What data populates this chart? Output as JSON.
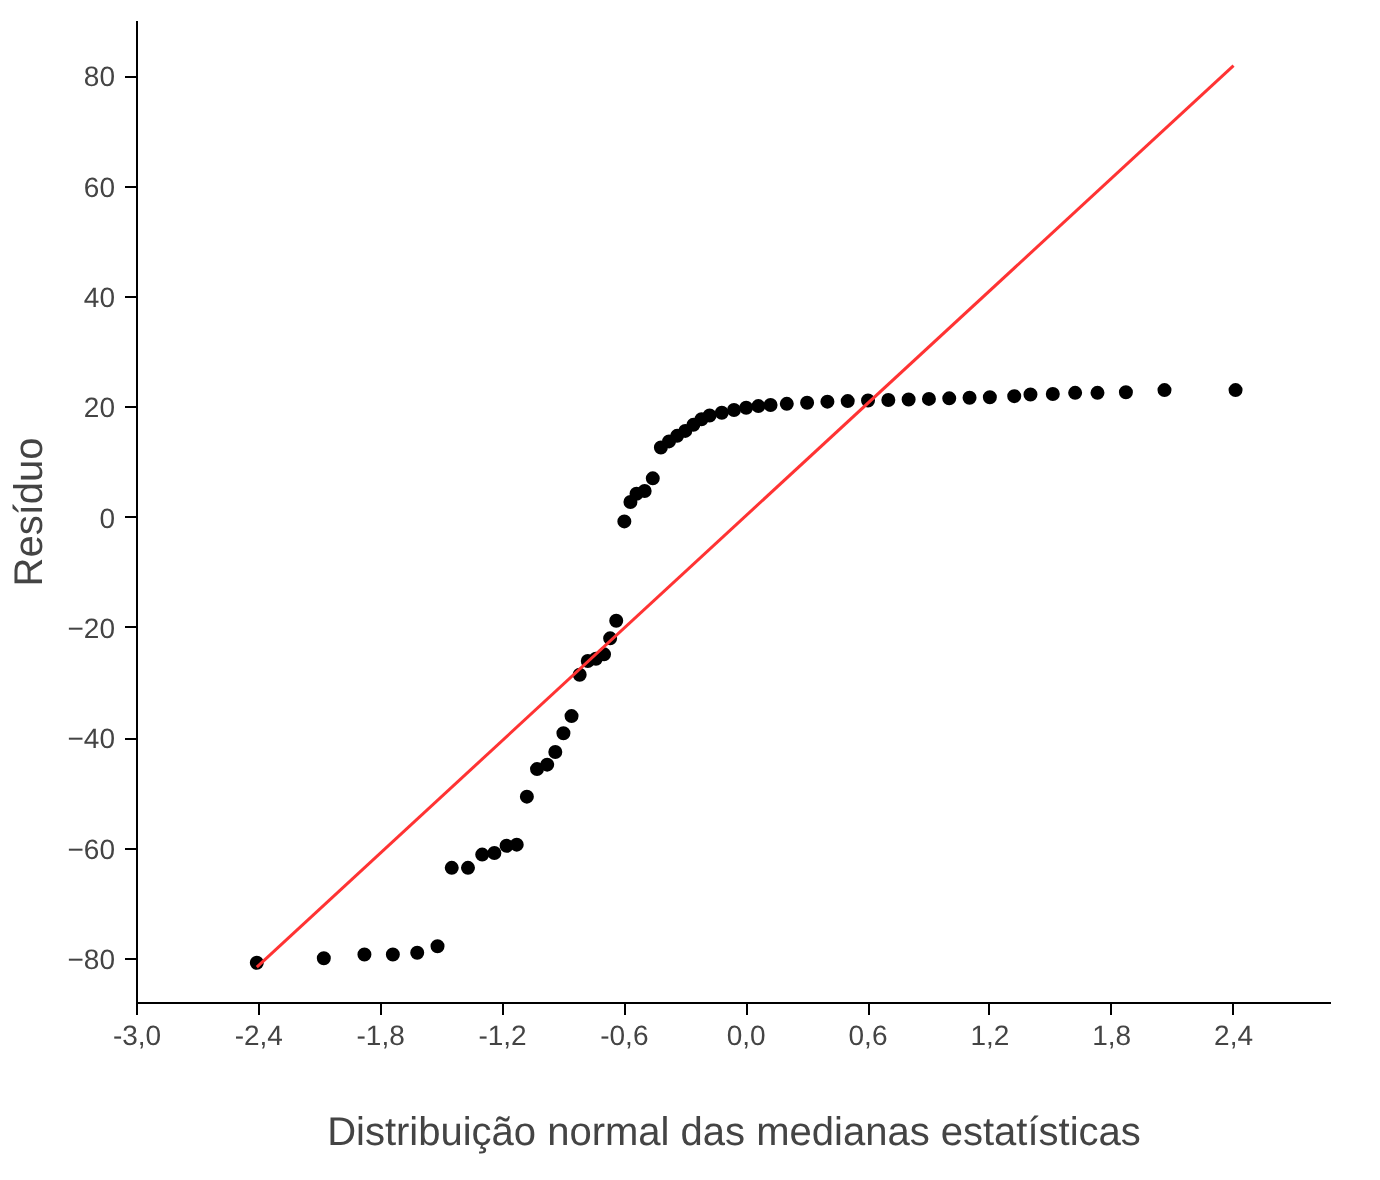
{
  "chart_data": {
    "type": "scatter",
    "xlabel": "Distribuição normal das medianas estatísticas",
    "ylabel": "Resíduo",
    "xlim": [
      -3.0,
      2.88
    ],
    "ylim": [
      -88,
      90
    ],
    "xticks": [
      {
        "value": -3.0,
        "label": "-3,0"
      },
      {
        "value": -2.4,
        "label": "-2,4"
      },
      {
        "value": -1.8,
        "label": "-1,8"
      },
      {
        "value": -1.2,
        "label": "-1,2"
      },
      {
        "value": -0.6,
        "label": "-0,6"
      },
      {
        "value": 0.0,
        "label": "0,0"
      },
      {
        "value": 0.6,
        "label": "0,6"
      },
      {
        "value": 1.2,
        "label": "1,2"
      },
      {
        "value": 1.8,
        "label": "1,8"
      },
      {
        "value": 2.4,
        "label": "2,4"
      }
    ],
    "yticks": [
      -80,
      -60,
      -40,
      -20,
      0,
      20,
      40,
      60,
      80
    ],
    "grid": false,
    "series": [
      {
        "color": "#000000",
        "marker": "circle",
        "x": [
          -2.41,
          -2.08,
          -1.88,
          -1.74,
          -1.62,
          -1.52,
          -1.45,
          -1.37,
          -1.3,
          -1.24,
          -1.18,
          -1.13,
          -1.08,
          -1.03,
          -0.98,
          -0.94,
          -0.9,
          -0.86,
          -0.82,
          -0.78,
          -0.74,
          -0.7,
          -0.67,
          -0.64,
          -0.6,
          -0.57,
          -0.54,
          -0.5,
          -0.46,
          -0.42,
          -0.38,
          -0.34,
          -0.3,
          -0.26,
          -0.22,
          -0.18,
          -0.12,
          -0.06,
          0.0,
          0.06,
          0.12,
          0.2,
          0.3,
          0.4,
          0.5,
          0.6,
          0.7,
          0.8,
          0.9,
          1.0,
          1.1,
          1.2,
          1.32,
          1.4,
          1.51,
          1.62,
          1.73,
          1.87,
          2.06,
          2.41
        ],
        "values": [
          -80.7,
          -79.9,
          -79.2,
          -79.2,
          -78.9,
          -77.7,
          -63.5,
          -63.5,
          -61.1,
          -60.8,
          -59.5,
          -59.3,
          -50.6,
          -45.6,
          -44.8,
          -42.5,
          -39.1,
          -36.0,
          -28.5,
          -26.0,
          -25.6,
          -24.8,
          -21.9,
          -18.7,
          -0.7,
          2.8,
          4.3,
          4.8,
          7.1,
          12.7,
          13.8,
          14.8,
          15.7,
          16.8,
          17.8,
          18.5,
          19.0,
          19.5,
          19.9,
          20.2,
          20.4,
          20.6,
          20.8,
          21.0,
          21.1,
          21.2,
          21.3,
          21.4,
          21.5,
          21.6,
          21.7,
          21.8,
          22.0,
          22.3,
          22.4,
          22.6,
          22.6,
          22.7,
          23.1,
          23.1
        ]
      },
      {
        "type": "line",
        "color": "#ff3333",
        "line_style": "solid",
        "x": [
          -2.41,
          2.4
        ],
        "values": [
          -81.5,
          81.9
        ]
      }
    ]
  }
}
